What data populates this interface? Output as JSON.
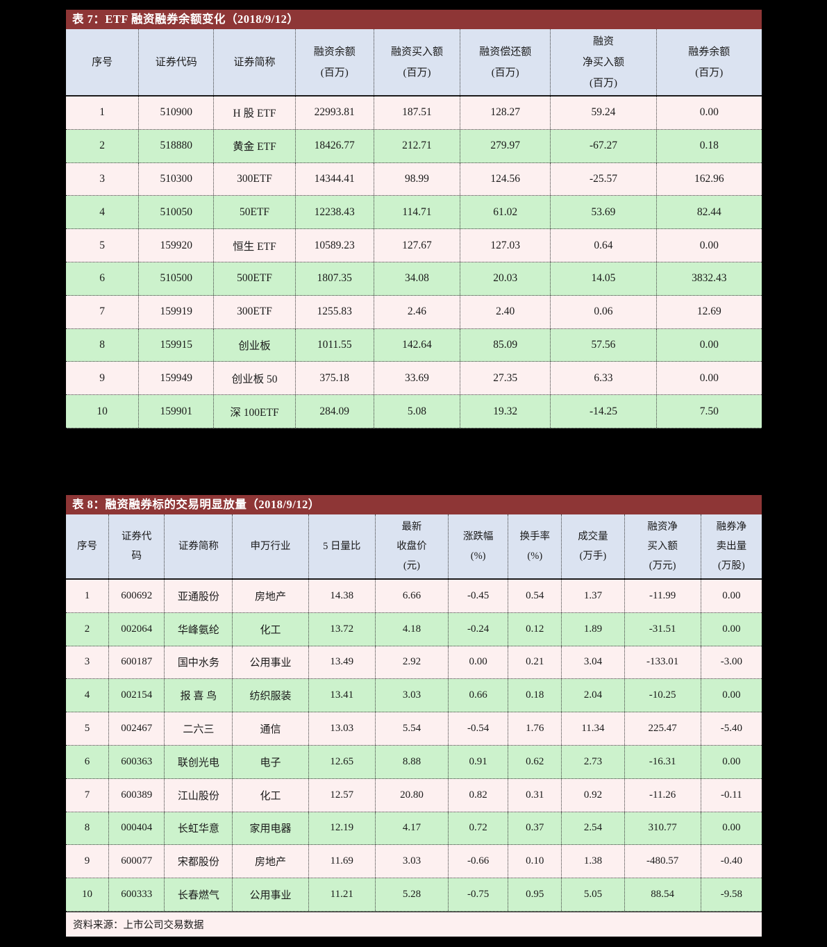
{
  "colors": {
    "title_bar": "#8E3636",
    "header_row": "#DBE3F1",
    "row_odd": "#FDF0F0",
    "row_even": "#CCF2CC",
    "page_bg": "#000000"
  },
  "tables": [
    {
      "id": "table7",
      "title": "表 7：ETF 融资融券余额变化（2018/9/12）",
      "columns": [
        {
          "label": "序号",
          "width": 10.5
        },
        {
          "label": "证券代码",
          "width": 10.8
        },
        {
          "label": "证券简称",
          "width": 11.7
        },
        {
          "label": "融资余额\n(百万)",
          "width": 11.3
        },
        {
          "label": "融资买入额\n(百万)",
          "width": 12.4
        },
        {
          "label": "融资偿还额\n(百万)",
          "width": 13.0
        },
        {
          "label": "融资\n净买入额\n(百万)",
          "width": 15.2
        },
        {
          "label": "融券余额\n(百万)",
          "width": 15.1
        }
      ],
      "rows": [
        [
          "1",
          "510900",
          "H 股 ETF",
          "22993.81",
          "187.51",
          "128.27",
          "59.24",
          "0.00"
        ],
        [
          "2",
          "518880",
          "黄金 ETF",
          "18426.77",
          "212.71",
          "279.97",
          "-67.27",
          "0.18"
        ],
        [
          "3",
          "510300",
          "300ETF",
          "14344.41",
          "98.99",
          "124.56",
          "-25.57",
          "162.96"
        ],
        [
          "4",
          "510050",
          "50ETF",
          "12238.43",
          "114.71",
          "61.02",
          "53.69",
          "82.44"
        ],
        [
          "5",
          "159920",
          "恒生 ETF",
          "10589.23",
          "127.67",
          "127.03",
          "0.64",
          "0.00"
        ],
        [
          "6",
          "510500",
          "500ETF",
          "1807.35",
          "34.08",
          "20.03",
          "14.05",
          "3832.43"
        ],
        [
          "7",
          "159919",
          "300ETF",
          "1255.83",
          "2.46",
          "2.40",
          "0.06",
          "12.69"
        ],
        [
          "8",
          "159915",
          "创业板",
          "1011.55",
          "142.64",
          "85.09",
          "57.56",
          "0.00"
        ],
        [
          "9",
          "159949",
          "创业板 50",
          "375.18",
          "33.69",
          "27.35",
          "6.33",
          "0.00"
        ],
        [
          "10",
          "159901",
          "深 100ETF",
          "284.09",
          "5.08",
          "19.32",
          "-14.25",
          "7.50"
        ]
      ],
      "source": ""
    },
    {
      "id": "table8",
      "title": "表 8：融资融券标的交易明显放量（2018/9/12）",
      "columns": [
        {
          "label": "序号",
          "width": 6.2
        },
        {
          "label": "证券代\n码",
          "width": 8.0
        },
        {
          "label": "证券简称",
          "width": 9.8
        },
        {
          "label": "申万行业",
          "width": 10.9
        },
        {
          "label": "5 日量比",
          "width": 9.6
        },
        {
          "label": "最新\n收盘价\n(元)",
          "width": 10.5
        },
        {
          "label": "涨跌幅\n(%)",
          "width": 8.6
        },
        {
          "label": "换手率\n(%)",
          "width": 7.7
        },
        {
          "label": "成交量\n(万手)",
          "width": 9.0
        },
        {
          "label": "融资净\n买入额\n(万元)",
          "width": 11.0
        },
        {
          "label": "融券净\n卖出量\n(万股)",
          "width": 8.7
        }
      ],
      "rows": [
        [
          "1",
          "600692",
          "亚通股份",
          "房地产",
          "14.38",
          "6.66",
          "-0.45",
          "0.54",
          "1.37",
          "-11.99",
          "0.00"
        ],
        [
          "2",
          "002064",
          "华峰氨纶",
          "化工",
          "13.72",
          "4.18",
          "-0.24",
          "0.12",
          "1.89",
          "-31.51",
          "0.00"
        ],
        [
          "3",
          "600187",
          "国中水务",
          "公用事业",
          "13.49",
          "2.92",
          "0.00",
          "0.21",
          "3.04",
          "-133.01",
          "-3.00"
        ],
        [
          "4",
          "002154",
          "报 喜 鸟",
          "纺织服装",
          "13.41",
          "3.03",
          "0.66",
          "0.18",
          "2.04",
          "-10.25",
          "0.00"
        ],
        [
          "5",
          "002467",
          "二六三",
          "通信",
          "13.03",
          "5.54",
          "-0.54",
          "1.76",
          "11.34",
          "225.47",
          "-5.40"
        ],
        [
          "6",
          "600363",
          "联创光电",
          "电子",
          "12.65",
          "8.88",
          "0.91",
          "0.62",
          "2.73",
          "-16.31",
          "0.00"
        ],
        [
          "7",
          "600389",
          "江山股份",
          "化工",
          "12.57",
          "20.80",
          "0.82",
          "0.31",
          "0.92",
          "-11.26",
          "-0.11"
        ],
        [
          "8",
          "000404",
          "长虹华意",
          "家用电器",
          "12.19",
          "4.17",
          "0.72",
          "0.37",
          "2.54",
          "310.77",
          "0.00"
        ],
        [
          "9",
          "600077",
          "宋都股份",
          "房地产",
          "11.69",
          "3.03",
          "-0.66",
          "0.10",
          "1.38",
          "-480.57",
          "-0.40"
        ],
        [
          "10",
          "600333",
          "长春燃气",
          "公用事业",
          "11.21",
          "5.28",
          "-0.75",
          "0.95",
          "5.05",
          "88.54",
          "-9.58"
        ]
      ],
      "source": "资料来源：上市公司交易数据"
    }
  ]
}
